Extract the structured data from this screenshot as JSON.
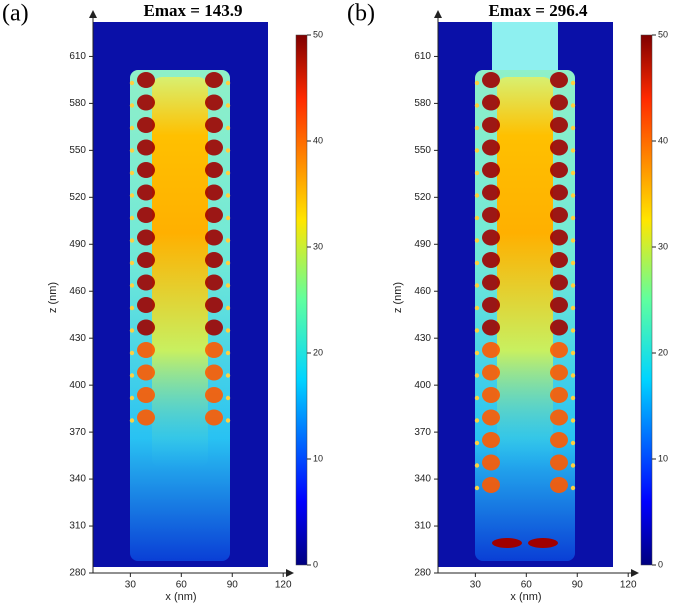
{
  "chart_data": [
    {
      "type": "heatmap",
      "panel_label": "(a)",
      "title": "Emax = 143.9",
      "xlabel": "x (nm)",
      "ylabel": "z (nm)",
      "xlim": [
        8,
        124
      ],
      "xticks": [
        30,
        60,
        90,
        120
      ],
      "ylim": [
        280,
        632
      ],
      "yticks": [
        280,
        310,
        340,
        370,
        400,
        430,
        460,
        490,
        520,
        550,
        580,
        610
      ],
      "colorbar_lim": [
        0,
        50
      ],
      "colorbar_ticks": [
        0,
        10,
        20,
        30,
        40,
        50
      ]
    },
    {
      "type": "heatmap",
      "panel_label": "(b)",
      "title": "Emax = 296.4",
      "xlabel": "x (nm)",
      "ylabel": "z (nm)",
      "xlim": [
        8,
        124
      ],
      "xticks": [
        30,
        60,
        90,
        120
      ],
      "ylim": [
        280,
        632
      ],
      "yticks": [
        280,
        310,
        340,
        370,
        400,
        430,
        460,
        490,
        520,
        550,
        580,
        610
      ],
      "colorbar_lim": [
        0,
        50
      ],
      "colorbar_ticks": [
        0,
        10,
        20,
        30,
        40,
        50
      ]
    }
  ]
}
